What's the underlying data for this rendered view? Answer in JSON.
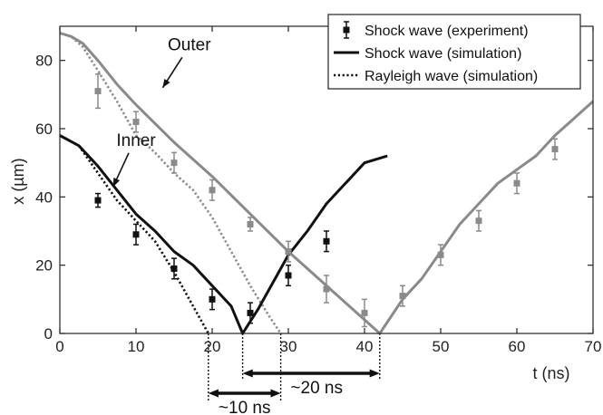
{
  "chart_data": {
    "type": "line",
    "title": "",
    "xlabel": "t (ns)",
    "ylabel": "x (µm)",
    "xlim": [
      0,
      70
    ],
    "ylim": [
      0,
      90
    ],
    "x_ticks": [
      "0",
      "10",
      "20",
      "30",
      "40",
      "50",
      "60",
      "70"
    ],
    "y_ticks": [
      "0",
      "20",
      "40",
      "60",
      "80"
    ],
    "grid": false,
    "legend": {
      "placement": "top-right",
      "entries": [
        "Shock wave (experiment)",
        "Shock wave (simulation)",
        "Rayleigh wave (simulation)"
      ]
    },
    "colors": {
      "inner": "#111111",
      "outer": "#8a8a8a"
    },
    "series": [
      {
        "name": "Shock wave (simulation)",
        "group": "Outer",
        "style": "solid",
        "color": "#8a8a8a",
        "x": [
          0,
          1.5,
          3,
          5,
          7.5,
          10,
          15,
          20,
          25,
          30,
          35,
          40,
          42,
          45,
          47.5,
          50,
          52.5,
          55,
          57.5,
          60,
          62.5,
          65,
          67.5,
          70
        ],
        "y": [
          88,
          87,
          85,
          80,
          73,
          67,
          56,
          46,
          35,
          24,
          14,
          4,
          0,
          10,
          16,
          24,
          32,
          38,
          44,
          48,
          52,
          58,
          63,
          68
        ]
      },
      {
        "name": "Rayleigh wave (simulation)",
        "group": "Outer",
        "style": "dotted",
        "color": "#8a8a8a",
        "x": [
          0,
          1.5,
          3,
          5,
          7.5,
          10,
          12.5,
          15,
          17.5,
          20,
          22.5,
          25,
          27.5,
          29
        ],
        "y": [
          88,
          87,
          84,
          77,
          68,
          58,
          53,
          47,
          42,
          34,
          24,
          14,
          5,
          0
        ]
      },
      {
        "name": "Shock wave (experiment)",
        "group": "Outer",
        "style": "markers",
        "color": "#8a8a8a",
        "x": [
          5,
          10,
          15,
          20,
          25,
          30,
          35,
          40,
          45,
          50,
          55,
          60,
          65
        ],
        "y": [
          71,
          62,
          50,
          42,
          32,
          24,
          13,
          6,
          11,
          23,
          33,
          44,
          54
        ],
        "error": [
          5,
          3,
          3,
          3,
          2,
          3,
          4,
          4,
          3,
          3,
          3,
          3,
          3
        ]
      },
      {
        "name": "Shock wave (simulation)",
        "group": "Inner",
        "style": "solid",
        "color": "#111111",
        "x": [
          0,
          2.5,
          5,
          7.5,
          10,
          12.5,
          15,
          17.5,
          20,
          22.5,
          24,
          26,
          30,
          32.5,
          35,
          37.5,
          40,
          43
        ],
        "y": [
          58,
          55,
          49,
          42,
          35,
          30,
          24,
          20,
          14,
          8,
          0,
          7,
          23,
          30,
          38,
          44,
          50,
          52
        ]
      },
      {
        "name": "Rayleigh wave (simulation)",
        "group": "Inner",
        "style": "dotted",
        "color": "#111111",
        "x": [
          0,
          2.5,
          5,
          7.5,
          10,
          12.5,
          15,
          17.5,
          19.5
        ],
        "y": [
          58,
          55,
          47,
          39,
          33,
          27,
          18,
          8,
          0
        ]
      },
      {
        "name": "Shock wave (experiment)",
        "group": "Inner",
        "style": "markers",
        "color": "#111111",
        "x": [
          5,
          10,
          15,
          20,
          25,
          30,
          35
        ],
        "y": [
          39,
          29,
          19,
          10,
          6,
          17,
          27
        ],
        "error": [
          2,
          3,
          3,
          3,
          3,
          3,
          3
        ]
      }
    ],
    "annotations": [
      {
        "text": "Outer",
        "x": 17,
        "y": 83,
        "arrow_to": [
          13.5,
          72
        ]
      },
      {
        "text": "Inner",
        "x": 10,
        "y": 55,
        "arrow_to": [
          7,
          43
        ]
      },
      {
        "text": "~10 ns",
        "from": 19.5,
        "to": 29
      },
      {
        "text": "~20 ns",
        "from": 24,
        "to": 42
      }
    ]
  }
}
